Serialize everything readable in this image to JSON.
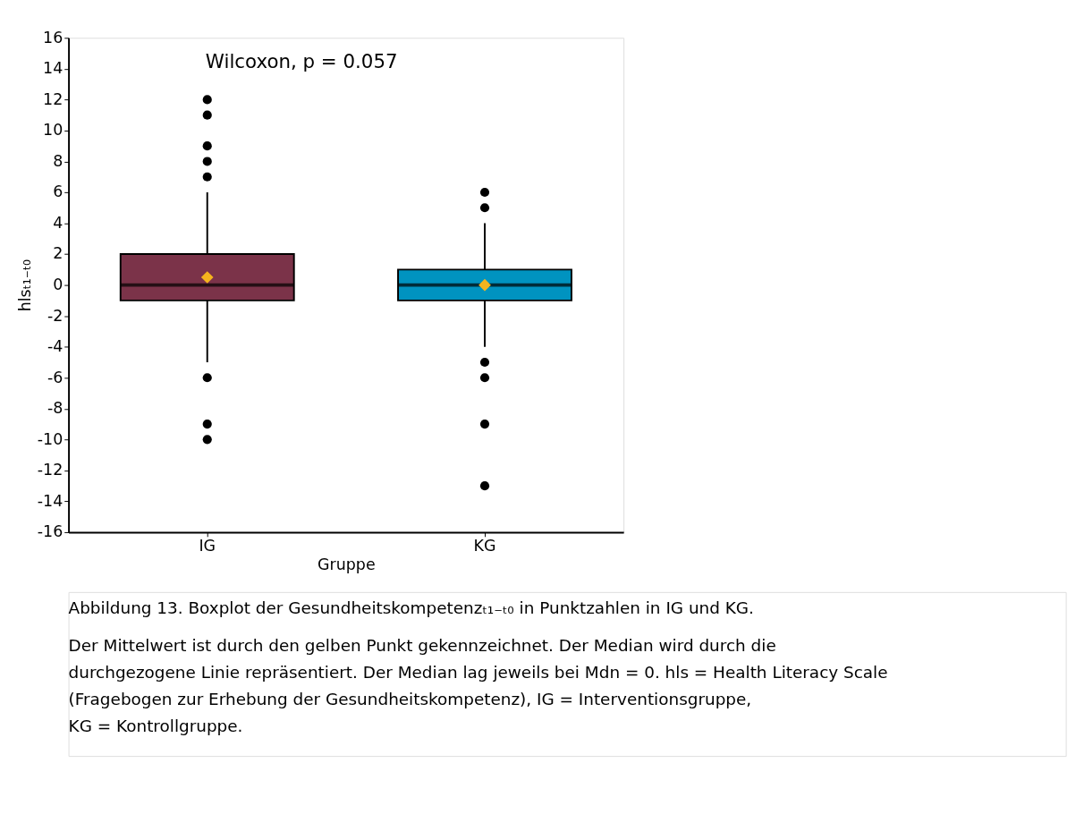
{
  "chart_data": {
    "type": "box",
    "categories": [
      "IG",
      "KG"
    ],
    "colors": [
      "#7b3349",
      "#0093c0"
    ],
    "boxes": [
      {
        "low": -5,
        "q1": -1,
        "median": 0,
        "q3": 2,
        "high": 6,
        "outliers": [
          12,
          11,
          9,
          8,
          7,
          -6,
          -9,
          -10
        ]
      },
      {
        "low": -4,
        "q1": -1,
        "median": 0,
        "q3": 1,
        "high": 4,
        "outliers": [
          6,
          5,
          -5,
          -6,
          -9,
          -13
        ]
      }
    ],
    "series": [
      {
        "type": "scatter",
        "x": [
          "IG",
          "KG"
        ],
        "values": [
          0.5,
          0
        ],
        "color": "#f5b41e",
        "marker": "diamond"
      }
    ],
    "ylim": [
      -16,
      16
    ],
    "yticks": [
      -16,
      -14,
      -12,
      -10,
      -8,
      -6,
      -4,
      -2,
      0,
      2,
      4,
      6,
      8,
      10,
      12,
      14,
      16
    ],
    "xlabel": "Gruppe",
    "ylabel": "hlsₜ₁₋ₜ₀",
    "grid": false,
    "annotations": [
      "Wilcoxon, p = 0.057",
      "Abbildung 13. Boxplot der Gesundheitskompetenzₜ₁₋ₜ₀ in Punktzahlen in IG und KG.",
      "Der Mittelwert ist durch den gelben Punkt gekennzeichnet. Der Median wird durch die\ndurchgezogene Linie repräsentiert. Der Median lag jeweils bei Mdn = 0. hls = Health Literacy Scale\n(Fragebogen zur Erhebung der Gesundheitskompetenz), IG = Interventionsgruppe,\nKG = Kontrollgruppe."
    ]
  }
}
